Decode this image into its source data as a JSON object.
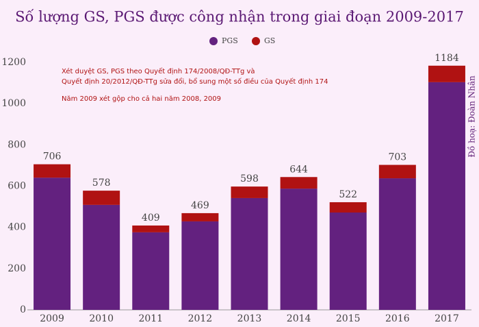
{
  "chart_data": {
    "type": "stacked_bar",
    "title": "Số lượng GS, PGS được công nhận trong giai đoạn 2009-2017",
    "annotations": [
      "Xét duyệt GS, PGS theo Quyết định 174/2008/QĐ-TTg và",
      "Quyết định 20/2012/QĐ-TTg sửa đổi, bổ sung một số điều của Quyết định 174",
      "Năm 2009 xét gộp cho cả hai năm 2008, 2009"
    ],
    "credit": "Đồ hoạ: Đoàn Nhân",
    "categories": [
      "2009",
      "2010",
      "2011",
      "2012",
      "2013",
      "2014",
      "2015",
      "2016",
      "2017"
    ],
    "series": [
      {
        "name": "PGS",
        "color": "#63217f",
        "values": [
          641,
          509,
          376,
          429,
          542,
          588,
          472,
          638,
          1104
        ]
      },
      {
        "name": "GS",
        "color": "#b01212",
        "values": [
          65,
          69,
          33,
          40,
          56,
          56,
          50,
          65,
          80
        ]
      }
    ],
    "totals": [
      706,
      578,
      409,
      469,
      598,
      644,
      522,
      703,
      1184
    ],
    "ylim": [
      0,
      1200
    ],
    "yticks": [
      0,
      200,
      400,
      600,
      800,
      1000,
      1200
    ],
    "grid": false,
    "legend": "top"
  }
}
